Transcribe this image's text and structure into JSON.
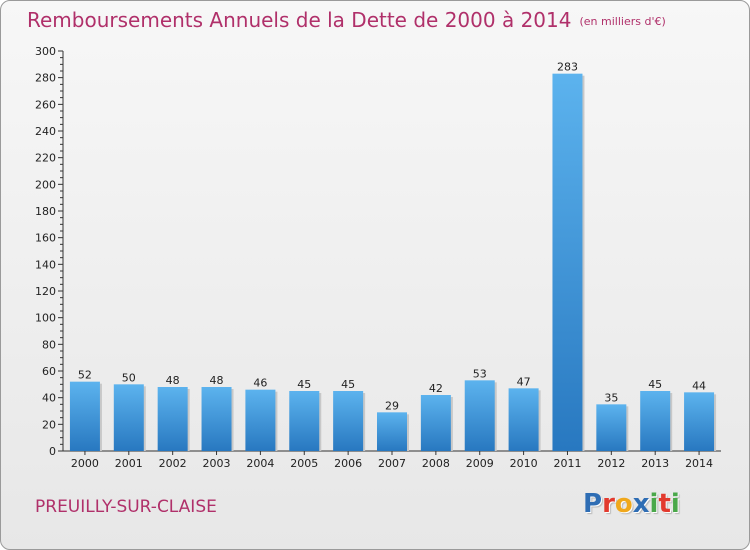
{
  "title": "Remboursements Annuels de la Dette de 2000 à 2014",
  "unit_label": "(en milliers d'€)",
  "town": "PREUILLY-SUR-CLAISE",
  "logo": {
    "letters": [
      "P",
      "r",
      "o",
      "x",
      "i",
      "t",
      "i"
    ],
    "colors": [
      "#2e6db4",
      "#e23a2e",
      "#f0a81c",
      "#2e6db4",
      "#4aa84a",
      "#e23a2e",
      "#4aa84a"
    ]
  },
  "colors": {
    "bar": "#4aa3e6",
    "bar_dark": "#2a7bc0",
    "text": "#b0306a"
  },
  "chart_data": {
    "type": "bar",
    "title": "Remboursements Annuels de la Dette de 2000 à 2014",
    "xlabel": "",
    "ylabel": "",
    "ylim": [
      0,
      300
    ],
    "yticks": [
      0,
      20,
      40,
      60,
      80,
      100,
      120,
      140,
      160,
      180,
      200,
      220,
      240,
      260,
      280,
      300
    ],
    "grid": false,
    "categories": [
      "2000",
      "2001",
      "2002",
      "2003",
      "2004",
      "2005",
      "2006",
      "2007",
      "2008",
      "2009",
      "2010",
      "2011",
      "2012",
      "2013",
      "2014"
    ],
    "values": [
      52,
      50,
      48,
      48,
      46,
      45,
      45,
      29,
      42,
      53,
      47,
      283,
      35,
      45,
      44
    ]
  }
}
